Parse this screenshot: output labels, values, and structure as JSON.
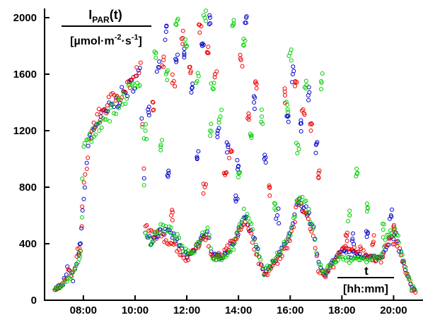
{
  "chart_data": {
    "type": "scatter",
    "title": "",
    "ylabel": {
      "main": "I",
      "sub": "PAR",
      "suffix": "(t)",
      "unit_pre": "[µmol·m",
      "unit_exp1": "-2",
      "unit_mid": "·s",
      "unit_exp2": "-1",
      "unit_post": "]"
    },
    "xlabel": {
      "main": "t",
      "unit": "[hh:mm]"
    },
    "xlim": [
      6.5,
      21.0
    ],
    "ylim": [
      0,
      2100
    ],
    "yticks": [
      0,
      400,
      800,
      1200,
      1600,
      2000
    ],
    "ytick_labels": [
      "0",
      "400",
      "800",
      "1200",
      "1600",
      "2000"
    ],
    "xticks": [
      8,
      10,
      12,
      14,
      16,
      18,
      20
    ],
    "xtick_labels": [
      "08:00",
      "10:00",
      "12:00",
      "14:00",
      "16:00",
      "18:00",
      "20:00"
    ],
    "grid": false,
    "marker": "open-circle",
    "series": [
      {
        "color": "#0000cc",
        "envelope": [
          [
            6.9,
            90
          ],
          [
            7.2,
            100
          ],
          [
            7.4,
            230
          ],
          [
            7.6,
            150
          ],
          [
            7.8,
            300
          ],
          [
            7.9,
            420
          ],
          [
            8.0,
            700
          ],
          [
            8.2,
            1100
          ],
          [
            8.5,
            1250
          ],
          [
            9.0,
            1350
          ],
          [
            9.5,
            1450
          ],
          [
            10.0,
            1550
          ],
          [
            10.2,
            1620
          ],
          [
            10.4,
            500
          ],
          [
            10.6,
            420
          ],
          [
            11.0,
            500
          ],
          [
            11.5,
            450
          ],
          [
            12.0,
            300
          ],
          [
            12.3,
            350
          ],
          [
            12.8,
            500
          ],
          [
            13.0,
            300
          ],
          [
            13.4,
            320
          ],
          [
            13.8,
            400
          ],
          [
            14.2,
            600
          ],
          [
            14.5,
            500
          ],
          [
            14.8,
            300
          ],
          [
            15.0,
            180
          ],
          [
            15.5,
            300
          ],
          [
            16.0,
            450
          ],
          [
            16.3,
            700
          ],
          [
            16.6,
            650
          ],
          [
            16.9,
            500
          ],
          [
            17.1,
            250
          ],
          [
            17.3,
            180
          ],
          [
            17.6,
            250
          ],
          [
            18.0,
            340
          ],
          [
            18.3,
            320
          ],
          [
            18.7,
            330
          ],
          [
            19.0,
            300
          ],
          [
            19.5,
            300
          ],
          [
            19.8,
            420
          ],
          [
            20.1,
            450
          ],
          [
            20.4,
            250
          ],
          [
            20.7,
            80
          ],
          [
            20.9,
            60
          ]
        ],
        "outliers": [
          [
            10.5,
            1350
          ],
          [
            10.9,
            1650
          ],
          [
            11.2,
            1900
          ],
          [
            11.6,
            1700
          ],
          [
            11.9,
            1750
          ],
          [
            12.2,
            1500
          ],
          [
            12.6,
            1800
          ],
          [
            12.9,
            2000
          ],
          [
            13.2,
            1200
          ],
          [
            13.6,
            1100
          ],
          [
            14.0,
            950
          ],
          [
            14.3,
            2000
          ],
          [
            14.6,
            1400
          ],
          [
            15.0,
            1000
          ],
          [
            15.5,
            600
          ],
          [
            15.9,
            1300
          ],
          [
            16.1,
            1600
          ],
          [
            16.4,
            1250
          ],
          [
            16.7,
            1450
          ],
          [
            17.0,
            1100
          ],
          [
            18.4,
            420
          ],
          [
            19.0,
            480
          ],
          [
            19.9,
            600
          ],
          [
            11.3,
            900
          ],
          [
            12.4,
            1000
          ],
          [
            13.9,
            700
          ]
        ]
      },
      {
        "color": "#ee0000",
        "envelope": [
          [
            6.9,
            90
          ],
          [
            7.2,
            110
          ],
          [
            7.4,
            200
          ],
          [
            7.6,
            180
          ],
          [
            7.8,
            350
          ],
          [
            7.9,
            360
          ],
          [
            8.0,
            800
          ],
          [
            8.3,
            1200
          ],
          [
            8.6,
            1300
          ],
          [
            9.0,
            1400
          ],
          [
            9.5,
            1480
          ],
          [
            10.0,
            1580
          ],
          [
            10.2,
            1650
          ],
          [
            10.4,
            520
          ],
          [
            10.6,
            480
          ],
          [
            11.0,
            450
          ],
          [
            11.5,
            400
          ],
          [
            12.0,
            280
          ],
          [
            12.3,
            380
          ],
          [
            12.8,
            450
          ],
          [
            13.0,
            290
          ],
          [
            13.4,
            330
          ],
          [
            13.8,
            420
          ],
          [
            14.2,
            560
          ],
          [
            14.5,
            450
          ],
          [
            14.8,
            280
          ],
          [
            15.0,
            170
          ],
          [
            15.5,
            280
          ],
          [
            16.0,
            430
          ],
          [
            16.3,
            680
          ],
          [
            16.6,
            620
          ],
          [
            16.9,
            450
          ],
          [
            17.1,
            220
          ],
          [
            17.3,
            170
          ],
          [
            17.6,
            230
          ],
          [
            18.0,
            370
          ],
          [
            18.3,
            350
          ],
          [
            18.7,
            360
          ],
          [
            19.0,
            320
          ],
          [
            19.5,
            280
          ],
          [
            19.8,
            430
          ],
          [
            20.1,
            420
          ],
          [
            20.4,
            230
          ],
          [
            20.7,
            80
          ],
          [
            20.9,
            60
          ]
        ],
        "outliers": [
          [
            10.7,
            1400
          ],
          [
            11.1,
            1700
          ],
          [
            11.5,
            1550
          ],
          [
            11.8,
            1850
          ],
          [
            12.1,
            1650
          ],
          [
            12.5,
            1950
          ],
          [
            12.8,
            1750
          ],
          [
            13.1,
            1600
          ],
          [
            13.5,
            900
          ],
          [
            14.1,
            1700
          ],
          [
            14.4,
            1300
          ],
          [
            14.7,
            1500
          ],
          [
            15.2,
            800
          ],
          [
            15.8,
            1450
          ],
          [
            16.2,
            1550
          ],
          [
            16.5,
            1350
          ],
          [
            16.8,
            1200
          ],
          [
            17.1,
            900
          ],
          [
            18.2,
            420
          ],
          [
            19.2,
            400
          ],
          [
            20.0,
            520
          ],
          [
            11.4,
            600
          ],
          [
            12.7,
            800
          ],
          [
            13.7,
            1050
          ]
        ]
      },
      {
        "color": "#00cc00",
        "envelope": [
          [
            6.9,
            85
          ],
          [
            7.2,
            95
          ],
          [
            7.4,
            150
          ],
          [
            7.6,
            200
          ],
          [
            7.8,
            250
          ],
          [
            7.9,
            330
          ],
          [
            8.0,
            1100
          ],
          [
            8.3,
            1150
          ],
          [
            8.6,
            1250
          ],
          [
            9.0,
            1320
          ],
          [
            9.5,
            1420
          ],
          [
            10.0,
            1520
          ],
          [
            10.2,
            1580
          ],
          [
            10.4,
            480
          ],
          [
            10.6,
            400
          ],
          [
            11.0,
            520
          ],
          [
            11.5,
            480
          ],
          [
            12.0,
            320
          ],
          [
            12.3,
            360
          ],
          [
            12.8,
            520
          ],
          [
            13.0,
            310
          ],
          [
            13.4,
            300
          ],
          [
            13.8,
            380
          ],
          [
            14.2,
            620
          ],
          [
            14.5,
            520
          ],
          [
            14.8,
            320
          ],
          [
            15.0,
            190
          ],
          [
            15.5,
            320
          ],
          [
            16.0,
            470
          ],
          [
            16.3,
            720
          ],
          [
            16.6,
            680
          ],
          [
            16.9,
            520
          ],
          [
            17.1,
            260
          ],
          [
            17.3,
            190
          ],
          [
            17.6,
            260
          ],
          [
            18.0,
            300
          ],
          [
            18.3,
            280
          ],
          [
            18.7,
            300
          ],
          [
            19.0,
            280
          ],
          [
            19.5,
            320
          ],
          [
            19.8,
            470
          ],
          [
            20.1,
            480
          ],
          [
            20.4,
            260
          ],
          [
            20.7,
            90
          ],
          [
            20.9,
            70
          ]
        ],
        "outliers": [
          [
            10.4,
            1200
          ],
          [
            10.8,
            1750
          ],
          [
            11.2,
            1600
          ],
          [
            11.6,
            1950
          ],
          [
            12.0,
            1800
          ],
          [
            12.4,
            1550
          ],
          [
            12.7,
            2000
          ],
          [
            13.0,
            1500
          ],
          [
            13.3,
            1300
          ],
          [
            13.8,
            1950
          ],
          [
            14.2,
            1850
          ],
          [
            14.5,
            1150
          ],
          [
            14.9,
            1300
          ],
          [
            15.4,
            650
          ],
          [
            15.9,
            1350
          ],
          [
            16.0,
            1750
          ],
          [
            16.3,
            1100
          ],
          [
            16.6,
            1500
          ],
          [
            17.2,
            1550
          ],
          [
            18.3,
            600
          ],
          [
            18.6,
            900
          ],
          [
            19.0,
            650
          ],
          [
            19.6,
            500
          ],
          [
            11.0,
            1100
          ],
          [
            12.9,
            1200
          ],
          [
            14.0,
            900
          ]
        ]
      }
    ]
  }
}
